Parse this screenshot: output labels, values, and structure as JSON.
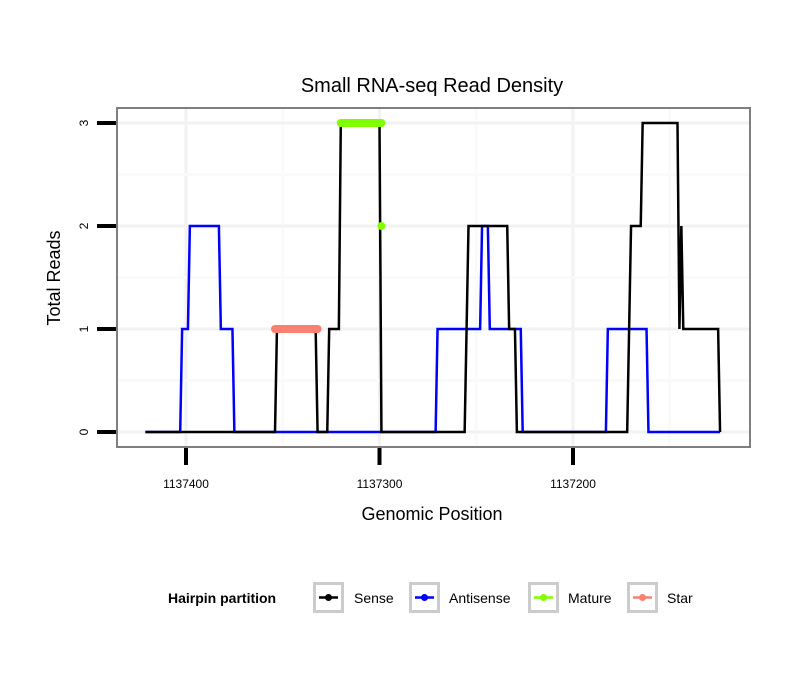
{
  "chart_data": {
    "type": "line",
    "title": "Small RNA-seq Read Density",
    "xlabel": "Genomic Position",
    "ylabel": "Total Reads",
    "x_reversed": true,
    "xlim": [
      1137426,
      1137099
    ],
    "ylim": [
      -0.15,
      3.15
    ],
    "x_ticks": [
      1137400,
      1137300,
      1137200
    ],
    "x_tick_labels": [
      "1137400",
      "1137300",
      "1137200"
    ],
    "y_ticks": [
      0,
      1,
      2,
      3
    ],
    "y_tick_labels": [
      "0",
      "1",
      "2",
      "3"
    ],
    "grid": true,
    "legend": {
      "title": "Hairpin partition",
      "position": "bottom",
      "entries": [
        "Sense",
        "Antisense",
        "Mature",
        "Star"
      ]
    },
    "series": [
      {
        "name": "Antisense",
        "color": "#0000ff",
        "kind": "step",
        "points": [
          [
            1137421,
            0
          ],
          [
            1137403,
            0
          ],
          [
            1137402,
            1
          ],
          [
            1137399,
            1
          ],
          [
            1137398,
            2
          ],
          [
            1137383,
            2
          ],
          [
            1137382,
            1
          ],
          [
            1137376,
            1
          ],
          [
            1137375,
            0
          ],
          [
            1137271,
            0
          ],
          [
            1137270,
            1
          ],
          [
            1137248,
            1
          ],
          [
            1137247,
            2
          ],
          [
            1137244,
            2
          ],
          [
            1137243,
            1
          ],
          [
            1137227,
            1
          ],
          [
            1137226,
            0
          ],
          [
            1137183,
            0
          ],
          [
            1137182,
            1
          ],
          [
            1137162,
            1
          ],
          [
            1137161,
            0
          ],
          [
            1137124,
            0
          ]
        ]
      },
      {
        "name": "Sense",
        "color": "#000000",
        "kind": "step",
        "points": [
          [
            1137421,
            0
          ],
          [
            1137354,
            0
          ],
          [
            1137353,
            1
          ],
          [
            1137333,
            1
          ],
          [
            1137332,
            0
          ],
          [
            1137327,
            0
          ],
          [
            1137326,
            1
          ],
          [
            1137321,
            1
          ],
          [
            1137320,
            3
          ],
          [
            1137300,
            3
          ],
          [
            1137299,
            0
          ],
          [
            1137256,
            0
          ],
          [
            1137254,
            2
          ],
          [
            1137234,
            2
          ],
          [
            1137233,
            1
          ],
          [
            1137230,
            1
          ],
          [
            1137229,
            0
          ],
          [
            1137172,
            0
          ],
          [
            1137170,
            2
          ],
          [
            1137165,
            2
          ],
          [
            1137164,
            3
          ],
          [
            1137146,
            3
          ],
          [
            1137145,
            1
          ],
          [
            1137144,
            2
          ],
          [
            1137143,
            1
          ],
          [
            1137125,
            1
          ],
          [
            1137124,
            0
          ]
        ]
      },
      {
        "name": "Mature",
        "color": "#7fff00",
        "kind": "segment",
        "points": [
          [
            1137320,
            3
          ],
          [
            1137299,
            3
          ]
        ],
        "extra_points": [
          [
            1137299,
            2
          ]
        ]
      },
      {
        "name": "Star",
        "color": "#fa8072",
        "kind": "segment",
        "points": [
          [
            1137354,
            1
          ],
          [
            1137332,
            1
          ]
        ]
      }
    ]
  }
}
